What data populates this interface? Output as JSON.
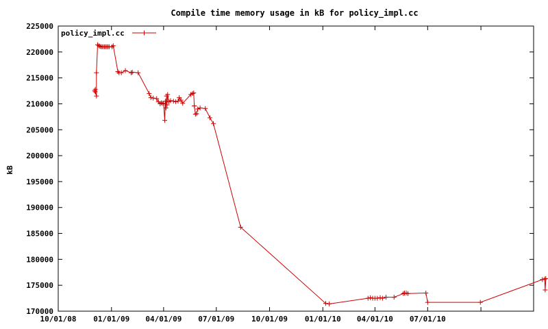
{
  "chart_data": {
    "type": "line",
    "title": "Compile time memory usage in kB for policy_impl.cc",
    "xlabel": "",
    "ylabel": "kB",
    "ylim": [
      170000,
      225000
    ],
    "xlim": [
      "2008-10-01",
      "2010-12-31"
    ],
    "yticks": [
      170000,
      175000,
      180000,
      185000,
      190000,
      195000,
      200000,
      205000,
      210000,
      215000,
      220000,
      225000
    ],
    "xticks": [
      {
        "date": "2008-10-01",
        "label": "10/01/08"
      },
      {
        "date": "2009-01-01",
        "label": "01/01/09"
      },
      {
        "date": "2009-04-01",
        "label": "04/01/09"
      },
      {
        "date": "2009-07-01",
        "label": "07/01/09"
      },
      {
        "date": "2009-10-01",
        "label": "10/01/09"
      },
      {
        "date": "2010-01-01",
        "label": "01/01/10"
      },
      {
        "date": "2010-04-01",
        "label": "04/01/10"
      },
      {
        "date": "2010-07-01",
        "label": "07/01/10"
      },
      {
        "date": "2010-10-01",
        "label": ""
      }
    ],
    "grid": false,
    "legend_position": "top-left",
    "series": [
      {
        "name": "policy_impl.cc",
        "color": "#cc0000",
        "marker": "plus",
        "points": [
          [
            "2008-12-03",
            212500
          ],
          [
            "2008-12-04",
            212800
          ],
          [
            "2008-12-04",
            212300
          ],
          [
            "2008-12-06",
            211500
          ],
          [
            "2008-12-06",
            216000
          ],
          [
            "2008-12-08",
            221400
          ],
          [
            "2008-12-10",
            221200
          ],
          [
            "2008-12-12",
            221100
          ],
          [
            "2008-12-14",
            221000
          ],
          [
            "2008-12-16",
            221000
          ],
          [
            "2008-12-18",
            221000
          ],
          [
            "2008-12-20",
            221000
          ],
          [
            "2008-12-22",
            221000
          ],
          [
            "2008-12-24",
            221000
          ],
          [
            "2008-12-26",
            221000
          ],
          [
            "2008-12-28",
            221000
          ],
          [
            "2009-01-02",
            221000
          ],
          [
            "2009-01-04",
            221200
          ],
          [
            "2009-01-12",
            216200
          ],
          [
            "2009-01-14",
            216000
          ],
          [
            "2009-01-18",
            216000
          ],
          [
            "2009-01-25",
            216400
          ],
          [
            "2009-02-04",
            216000
          ],
          [
            "2009-02-06",
            216100
          ],
          [
            "2009-02-16",
            216000
          ],
          [
            "2009-03-07",
            212000
          ],
          [
            "2009-03-10",
            211200
          ],
          [
            "2009-03-14",
            211100
          ],
          [
            "2009-03-20",
            211000
          ],
          [
            "2009-03-23",
            210400
          ],
          [
            "2009-03-26",
            210000
          ],
          [
            "2009-03-28",
            210200
          ],
          [
            "2009-03-30",
            210100
          ],
          [
            "2009-04-01",
            210000
          ],
          [
            "2009-04-03",
            206800
          ],
          [
            "2009-04-04",
            210500
          ],
          [
            "2009-04-05",
            209200
          ],
          [
            "2009-04-06",
            211500
          ],
          [
            "2009-04-07",
            209800
          ],
          [
            "2009-04-08",
            211800
          ],
          [
            "2009-04-10",
            210400
          ],
          [
            "2009-04-13",
            210600
          ],
          [
            "2009-04-18",
            210500
          ],
          [
            "2009-04-22",
            210400
          ],
          [
            "2009-04-26",
            210500
          ],
          [
            "2009-04-28",
            211200
          ],
          [
            "2009-05-01",
            210700
          ],
          [
            "2009-05-04",
            210100
          ],
          [
            "2009-05-18",
            211800
          ],
          [
            "2009-05-21",
            212000
          ],
          [
            "2009-05-23",
            212100
          ],
          [
            "2009-05-24",
            209600
          ],
          [
            "2009-05-26",
            208000
          ],
          [
            "2009-05-28",
            208100
          ],
          [
            "2009-05-30",
            209000
          ],
          [
            "2009-06-03",
            209200
          ],
          [
            "2009-06-12",
            209100
          ],
          [
            "2009-06-20",
            207300
          ],
          [
            "2009-06-26",
            206200
          ],
          [
            "2009-08-12",
            186200
          ],
          [
            "2010-01-06",
            171500
          ],
          [
            "2010-01-12",
            171400
          ],
          [
            "2010-03-20",
            172500
          ],
          [
            "2010-03-24",
            172600
          ],
          [
            "2010-03-28",
            172500
          ],
          [
            "2010-04-01",
            172500
          ],
          [
            "2010-04-05",
            172500
          ],
          [
            "2010-04-10",
            172600
          ],
          [
            "2010-04-14",
            172500
          ],
          [
            "2010-04-20",
            172700
          ],
          [
            "2010-05-04",
            172700
          ],
          [
            "2010-05-20",
            173400
          ],
          [
            "2010-05-22",
            173500
          ],
          [
            "2010-05-25",
            173500
          ],
          [
            "2010-05-28",
            173400
          ],
          [
            "2010-06-28",
            173500
          ],
          [
            "2010-07-01",
            171700
          ],
          [
            "2010-09-30",
            171700
          ],
          [
            "2011-01-15",
            176100
          ],
          [
            "2011-01-19",
            176200
          ],
          [
            "2011-01-20",
            174100
          ],
          [
            "2011-01-21",
            176300
          ]
        ]
      }
    ]
  }
}
